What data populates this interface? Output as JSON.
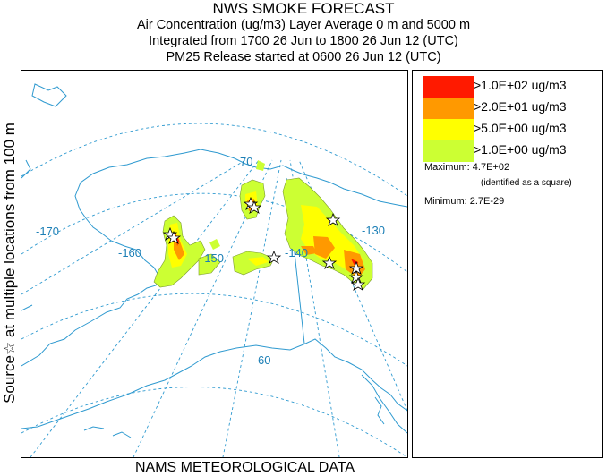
{
  "title": {
    "line1": "NWS SMOKE FORECAST",
    "line2": "Air Concentration (ug/m3) Layer Average    0 m and  5000 m",
    "line3": "Integrated from 1700 26 Jun to 1800 26 Jun 12 (UTC)",
    "line4": "PM25 Release started at 0600 26 Jun 12 (UTC)"
  },
  "side_label": "Source☆ at multiple locations  from  100 m",
  "footer": "NAMS METEOROLOGICAL DATA",
  "map": {
    "grid_labels": {
      "lon_170": "-170",
      "lon_160": "-160",
      "lon_150": "-150",
      "lon_140": "-140",
      "lon_130": "-130",
      "lat_70": "70",
      "lat_60": "60"
    },
    "colors": {
      "coast": "#2f9ad0",
      "grid": "#2f9ad0",
      "level1": "#ff1a00",
      "level2": "#ff9900",
      "level3": "#ffff00",
      "level4": "#ccff33"
    }
  },
  "legend": {
    "items": [
      {
        "label": ">1.0E+02 ug/m3",
        "color": "#ff1a00"
      },
      {
        "label": ">2.0E+01 ug/m3",
        "color": "#ff9900"
      },
      {
        "label": ">5.0E+00 ug/m3",
        "color": "#ffff00"
      },
      {
        "label": ">1.0E+00 ug/m3",
        "color": "#ccff33"
      }
    ],
    "maximum": "Maximum: 4.7E+02",
    "maximum_note": "(identified as a square)",
    "minimum": "Minimum: 2.7E-29"
  }
}
